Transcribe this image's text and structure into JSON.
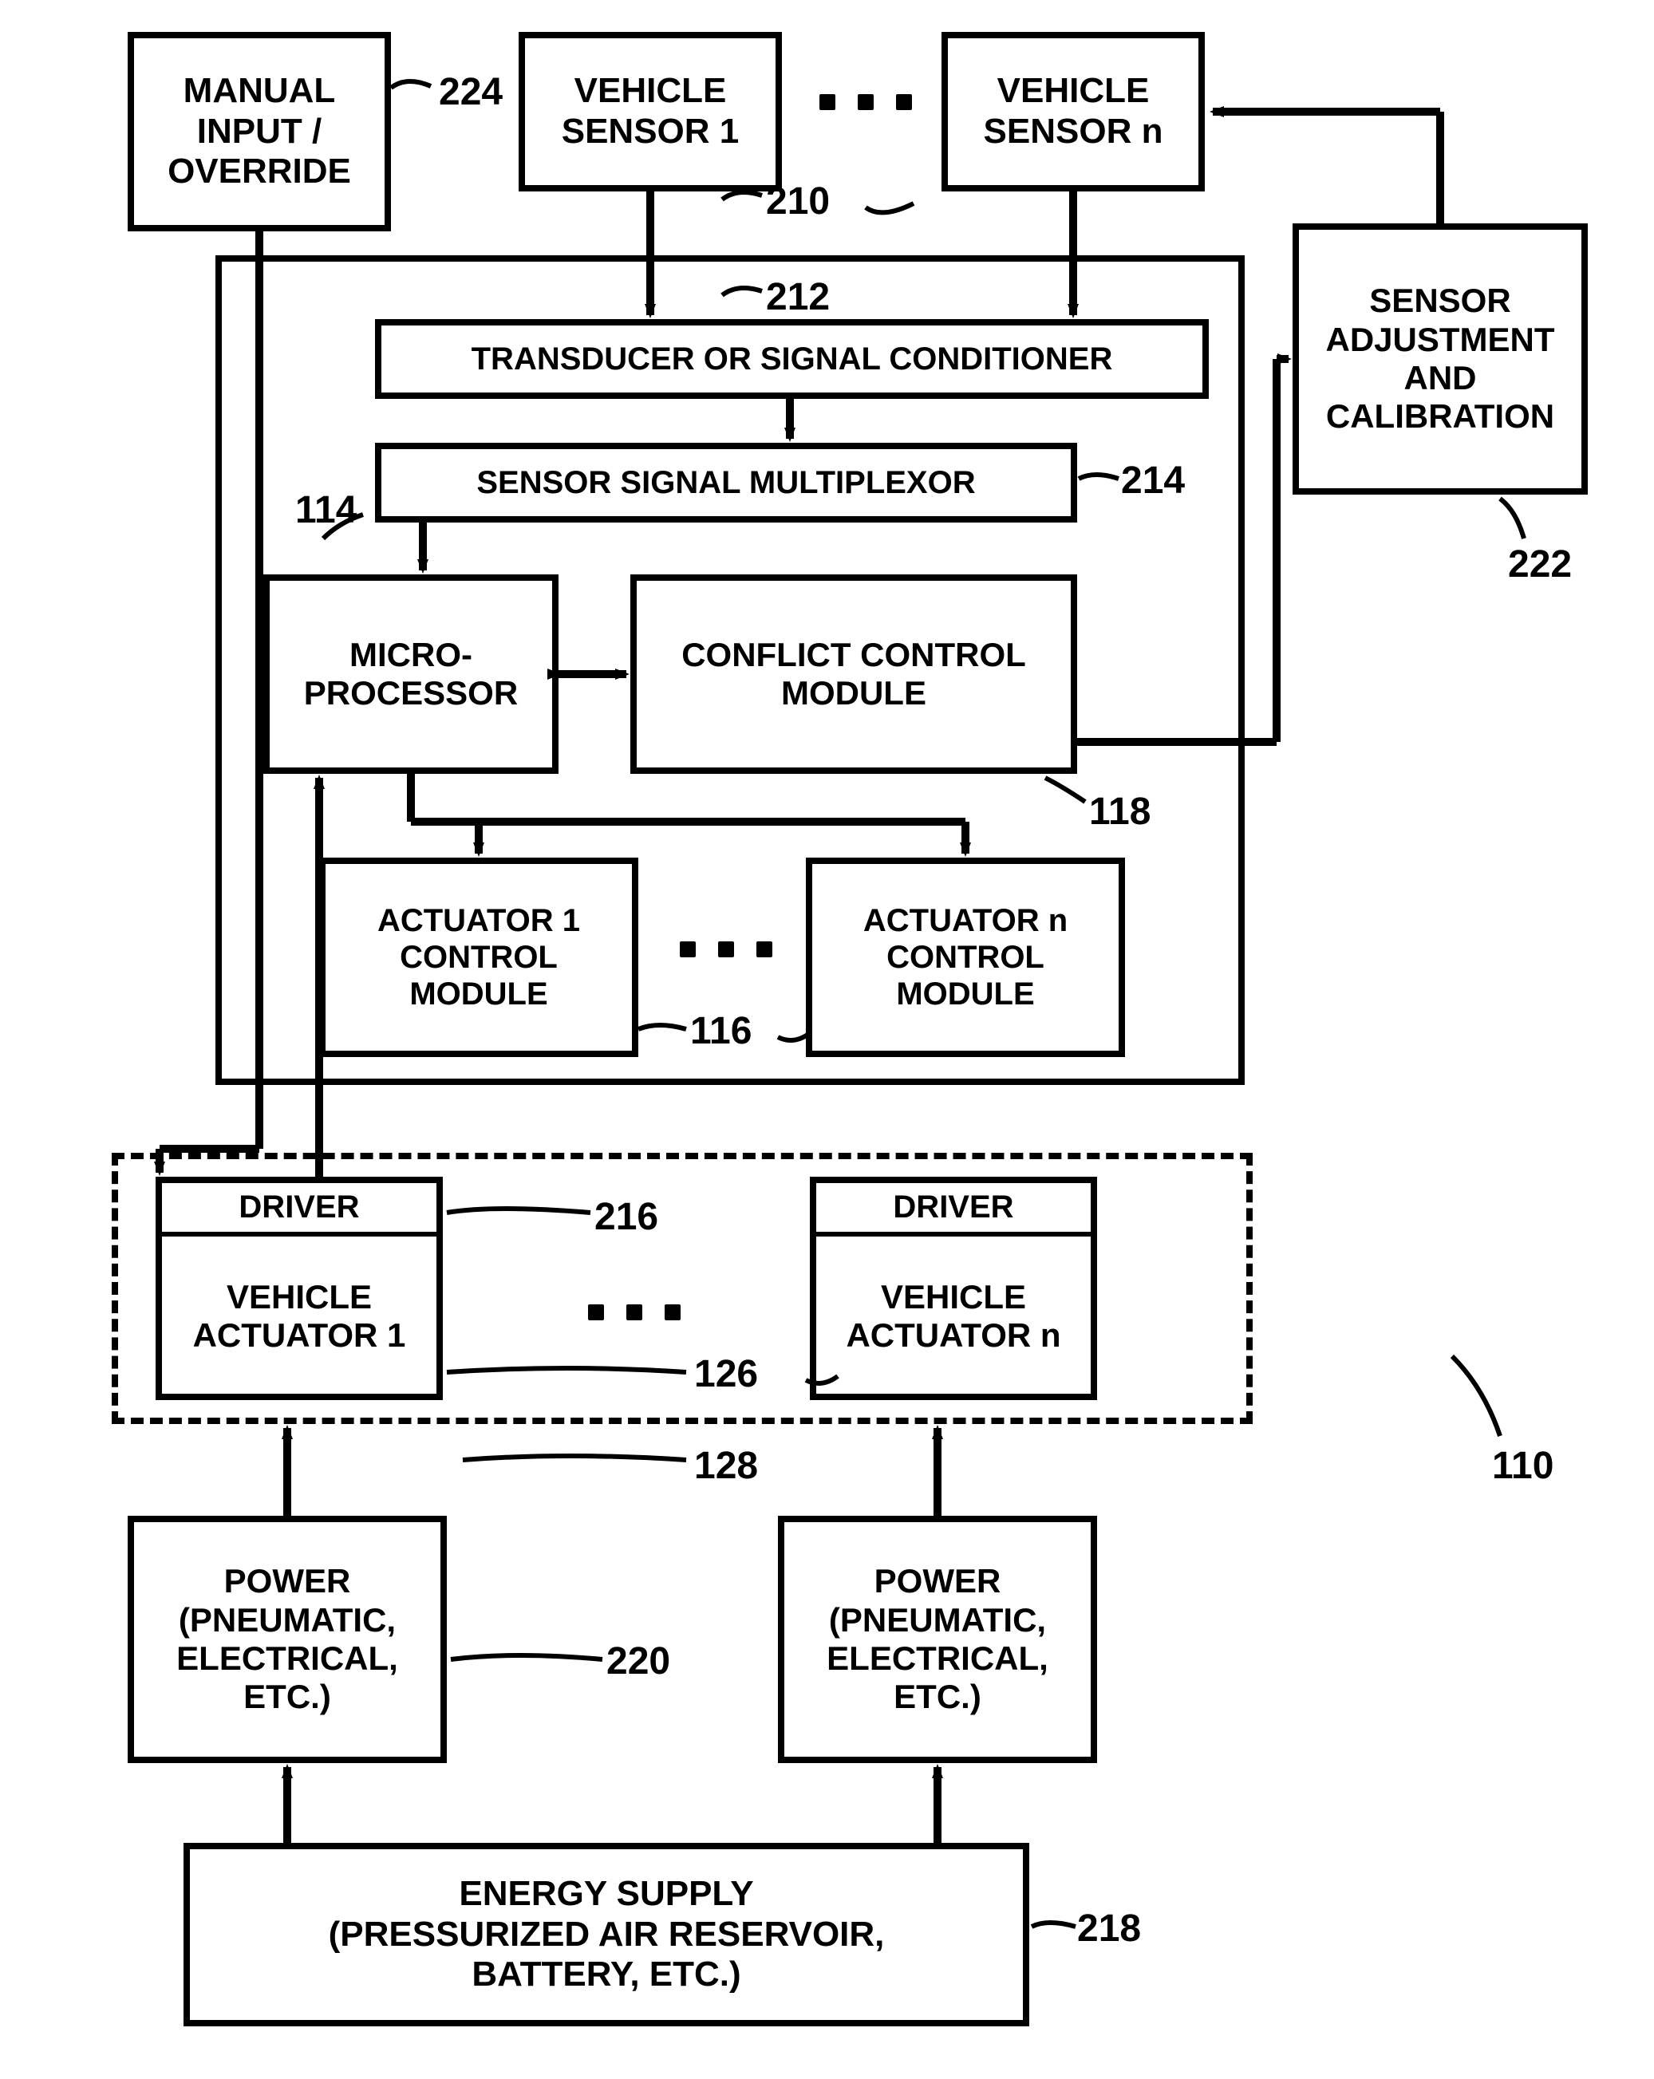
{
  "type": "flowchart",
  "background_color": "#ffffff",
  "stroke_color": "#000000",
  "stroke_width": 8,
  "font_family": "Arial",
  "node_fontsize": 44,
  "label_fontsize": 48,
  "nodes": {
    "manual_input": {
      "label": "MANUAL\nINPUT /\nOVERRIDE"
    },
    "vehicle_sensor_1": {
      "label": "VEHICLE\nSENSOR 1"
    },
    "vehicle_sensor_n": {
      "label": "VEHICLE\nSENSOR n"
    },
    "sensor_adjust": {
      "label": "SENSOR\nADJUSTMENT\nAND\nCALIBRATION"
    },
    "transducer": {
      "label": "TRANSDUCER OR SIGNAL CONDITIONER"
    },
    "multiplexor": {
      "label": "SENSOR SIGNAL MULTIPLEXOR"
    },
    "microprocessor": {
      "label": "MICRO-\nPROCESSOR"
    },
    "conflict": {
      "label": "CONFLICT CONTROL\nMODULE"
    },
    "actuator1_ctrl": {
      "label": "ACTUATOR 1\nCONTROL\nMODULE"
    },
    "actuatorn_ctrl": {
      "label": "ACTUATOR n\nCONTROL\nMODULE"
    },
    "driver1_header": {
      "label": "DRIVER"
    },
    "driver1_body": {
      "label": "VEHICLE\nACTUATOR 1"
    },
    "drivern_header": {
      "label": "DRIVER"
    },
    "drivern_body": {
      "label": "VEHICLE\nACTUATOR n"
    },
    "power1": {
      "label": "POWER\n(PNEUMATIC,\nELECTRICAL,\nETC.)"
    },
    "powern": {
      "label": "POWER\n(PNEUMATIC,\nELECTRICAL,\nETC.)"
    },
    "energy": {
      "label": "ENERGY SUPPLY\n(PRESSURIZED AIR RESERVOIR,\nBATTERY, ETC.)"
    }
  },
  "labels": {
    "l224": "224",
    "l210": "210",
    "l212": "212",
    "l214": "214",
    "l114": "114",
    "l118": "118",
    "l116": "116",
    "l216": "216",
    "l126": "126",
    "l128": "128",
    "l220": "220",
    "l218": "218",
    "l222": "222",
    "l110": "110"
  }
}
